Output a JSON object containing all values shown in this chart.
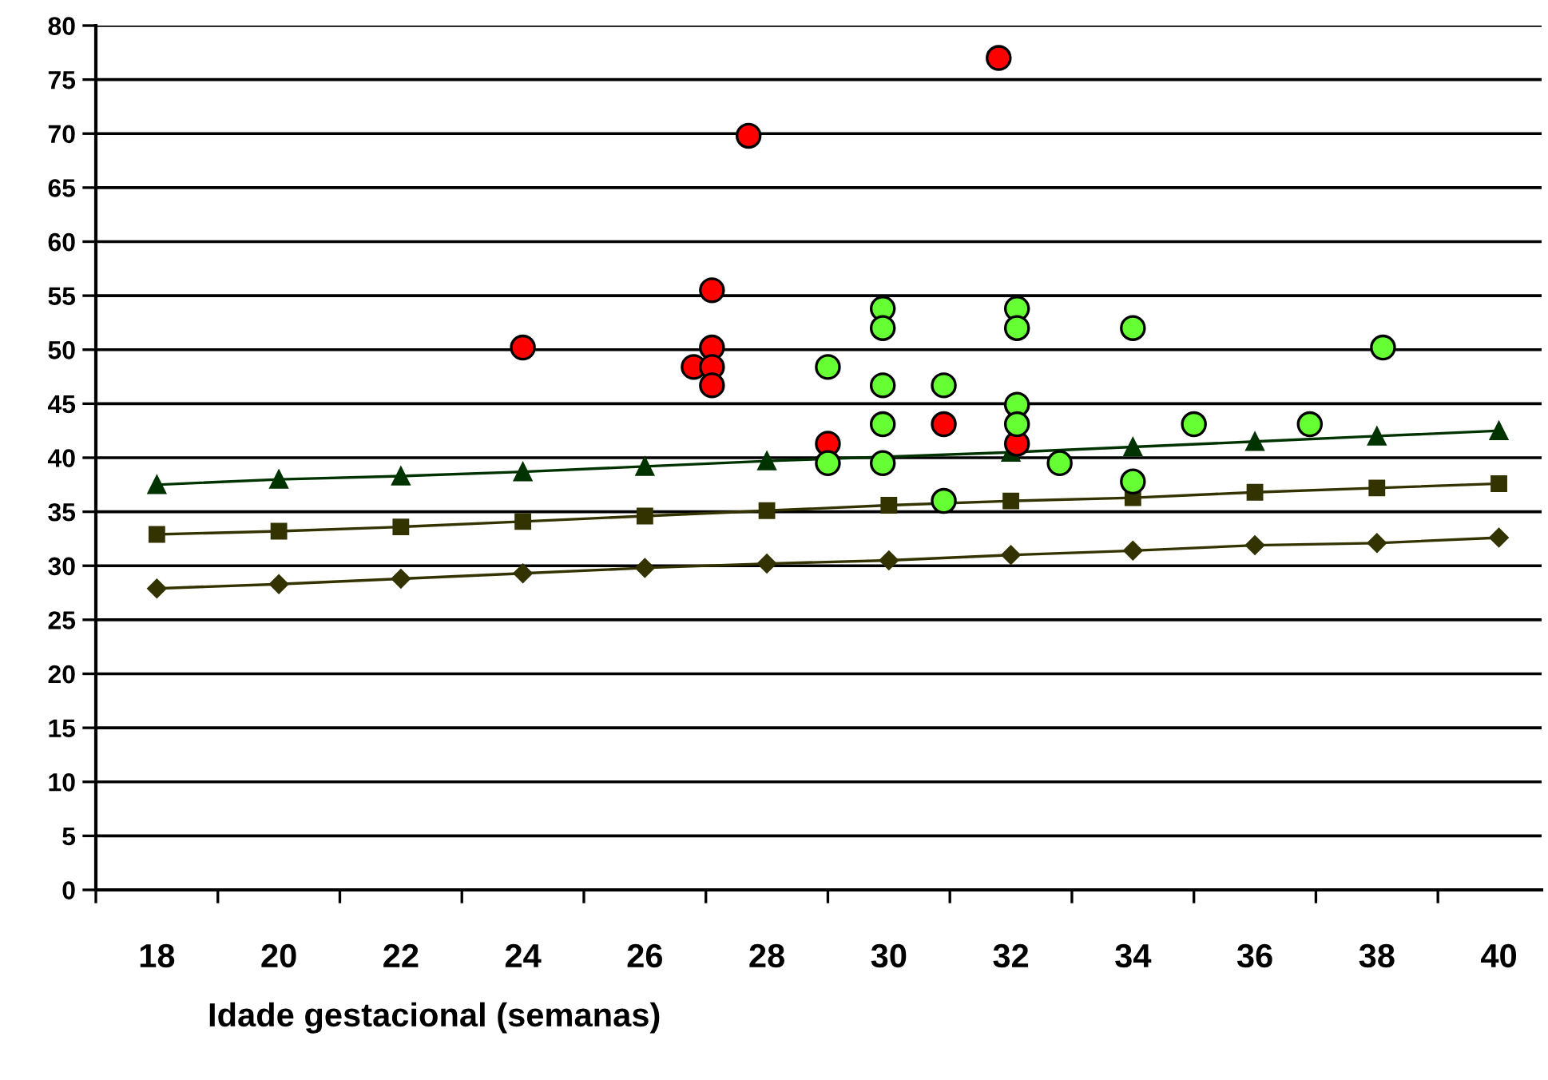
{
  "chart_data": {
    "type": "scatter",
    "xlabel": "Idade gestacional (semanas)",
    "xlim": [
      17,
      40.7
    ],
    "xticks": [
      {
        "value": 17,
        "label": null
      },
      18,
      {
        "value": 19,
        "label": null
      },
      20,
      {
        "value": 21,
        "label": null
      },
      22,
      {
        "value": 23,
        "label": null
      },
      24,
      {
        "value": 25,
        "label": null
      },
      26,
      {
        "value": 27,
        "label": null
      },
      28,
      {
        "value": 29,
        "label": null
      },
      30,
      {
        "value": 31,
        "label": null
      },
      32,
      {
        "value": 33,
        "label": null
      },
      34,
      {
        "value": 35,
        "label": null
      },
      36,
      {
        "value": 37,
        "label": null
      },
      38,
      {
        "value": 39,
        "label": null
      },
      40
    ],
    "ylim": [
      0,
      80
    ],
    "yticks": [
      0,
      5,
      10,
      15,
      20,
      25,
      30,
      35,
      40,
      45,
      50,
      55,
      60,
      65,
      70,
      75,
      80
    ],
    "grid": "y",
    "series": [
      {
        "type": "line",
        "marker": "triangle",
        "color": "#003300",
        "x": [
          18,
          20,
          22,
          24,
          26,
          28,
          30,
          32,
          34,
          36,
          38,
          40
        ],
        "values": [
          37.5,
          38.0,
          38.3,
          38.7,
          39.2,
          39.7,
          null,
          40.5,
          41.0,
          41.5,
          42.0,
          42.5
        ]
      },
      {
        "type": "line",
        "marker": "square",
        "color": "#333300",
        "x": [
          18,
          20,
          22,
          24,
          26,
          28,
          30,
          32,
          34,
          36,
          38,
          40
        ],
        "values": [
          32.9,
          33.2,
          33.6,
          34.1,
          34.6,
          35.1,
          35.6,
          36.0,
          36.3,
          36.8,
          37.2,
          37.6
        ]
      },
      {
        "type": "line",
        "marker": "diamond",
        "color": "#333300",
        "x": [
          18,
          20,
          22,
          24,
          26,
          28,
          30,
          32,
          34,
          36,
          38,
          40
        ],
        "values": [
          27.9,
          28.3,
          28.8,
          29.3,
          29.8,
          30.2,
          30.5,
          31.0,
          31.4,
          31.9,
          32.1,
          32.6
        ]
      },
      {
        "marker": "circle",
        "color": "#ff0000",
        "x": [
          24.0,
          26.8,
          27.1,
          27.1,
          27.1,
          27.1,
          27.7,
          31.8,
          29.0,
          30.9,
          32.1
        ],
        "values": [
          50.2,
          48.4,
          55.5,
          50.2,
          48.4,
          46.7,
          69.8,
          77.0,
          41.3,
          43.1,
          41.3
        ]
      },
      {
        "marker": "circle",
        "color": "#66ff33",
        "x": [
          29.0,
          29.0,
          29.9,
          29.9,
          29.9,
          29.9,
          29.9,
          30.9,
          30.9,
          32.1,
          32.1,
          32.1,
          32.1,
          32.8,
          34.0,
          34.0,
          35.0,
          36.9,
          38.1
        ],
        "values": [
          48.4,
          39.5,
          53.8,
          52.0,
          46.7,
          43.1,
          39.5,
          46.7,
          36.0,
          53.8,
          52.0,
          44.9,
          43.1,
          39.5,
          52.0,
          37.8,
          43.1,
          43.1,
          50.2
        ]
      }
    ]
  }
}
